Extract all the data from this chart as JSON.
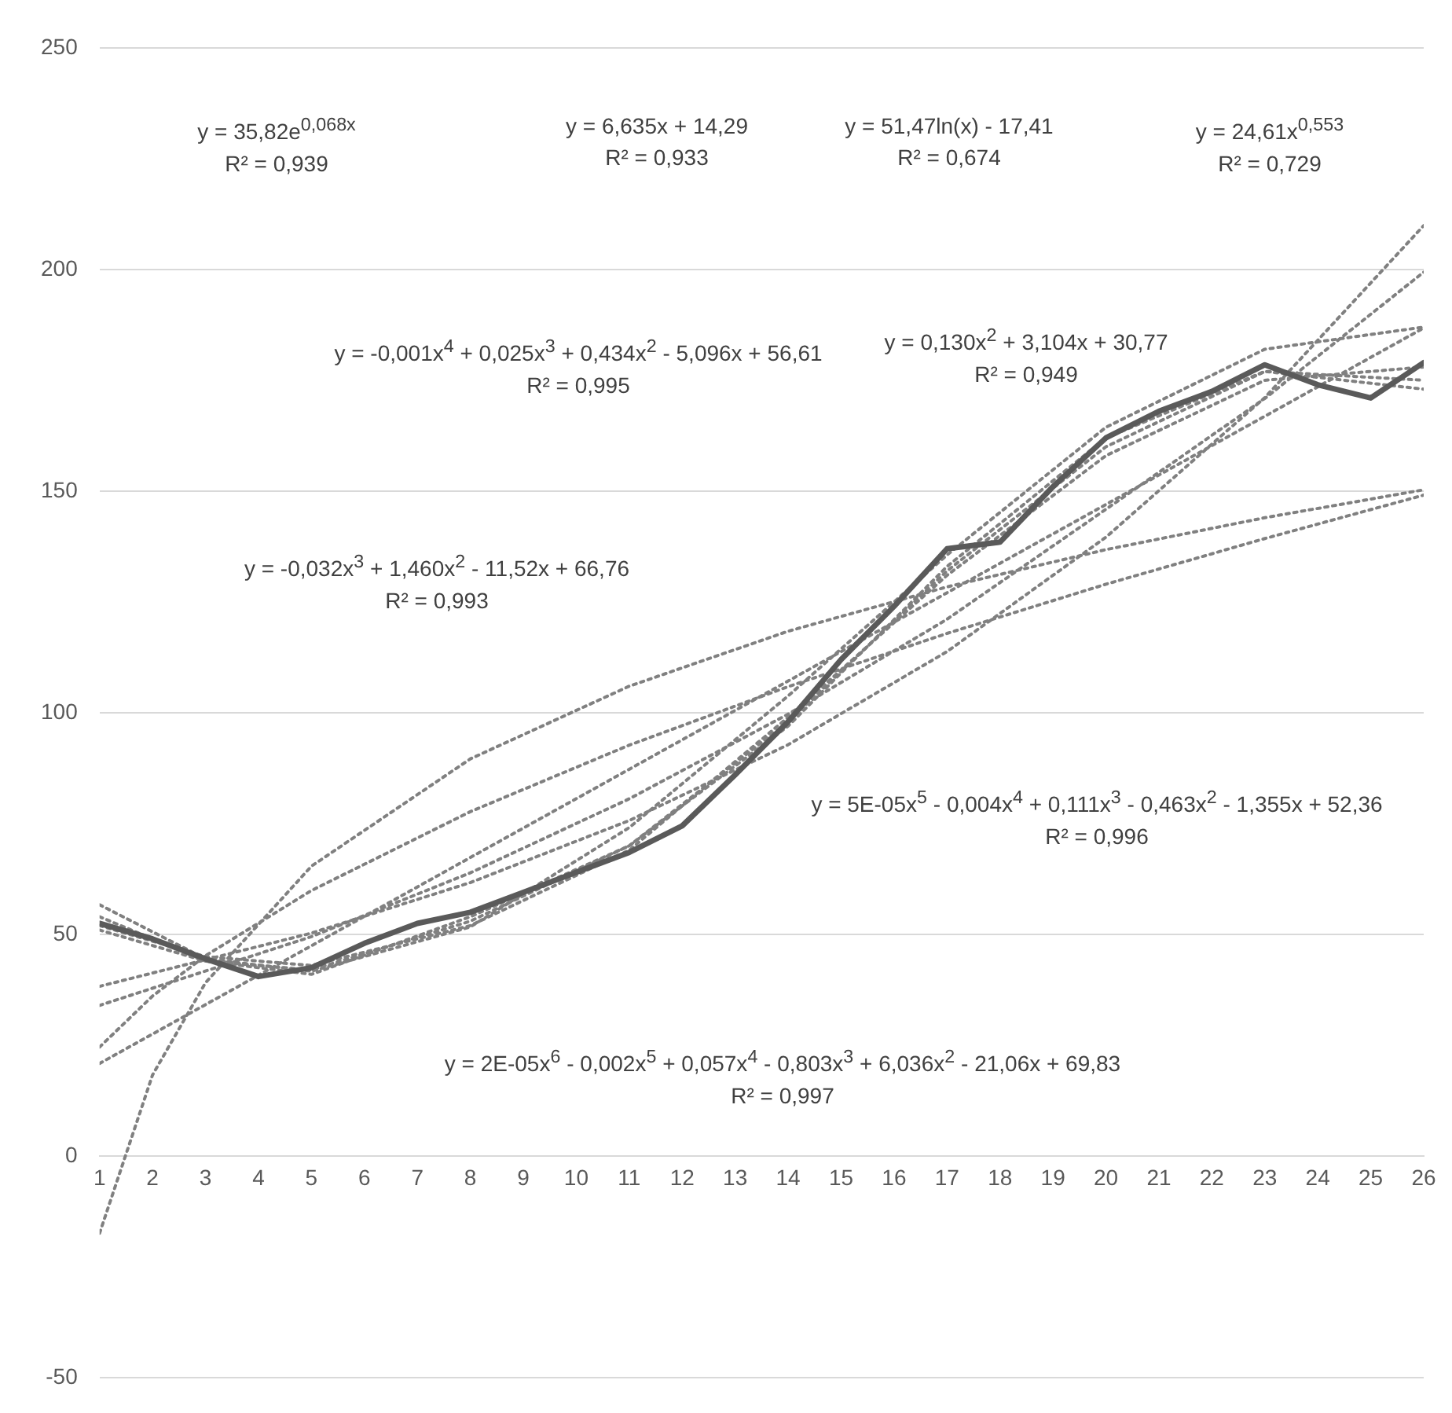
{
  "chart_data": {
    "type": "line",
    "xlim": [
      1,
      26
    ],
    "xticks": [
      1,
      2,
      3,
      4,
      5,
      6,
      7,
      8,
      9,
      10,
      11,
      12,
      13,
      14,
      15,
      16,
      17,
      18,
      19,
      20,
      21,
      22,
      23,
      24,
      25,
      26
    ],
    "ylim": [
      -50,
      250
    ],
    "yticks": [
      -50,
      0,
      50,
      100,
      150,
      200,
      250
    ],
    "grid": "y",
    "marker": "none",
    "series": [
      {
        "color": "#5a5a5a",
        "line_style": "solid",
        "x": [
          1,
          2,
          3,
          4,
          5,
          6,
          7,
          8,
          9,
          10,
          11,
          12,
          13,
          14,
          15,
          16,
          17,
          18,
          19,
          20,
          21,
          22,
          23,
          24,
          25,
          26
        ],
        "values": [
          52.5,
          49,
          44.5,
          40.5,
          42.5,
          48,
          52.5,
          55,
          59.5,
          64,
          68.5,
          74.5,
          86,
          98,
          112,
          124,
          137,
          138.5,
          151,
          162,
          168,
          172.5,
          178.5,
          174,
          171,
          179
        ]
      },
      {
        "color": "#808080",
        "line_style": "dotted",
        "x": [
          1,
          5,
          8,
          11,
          14,
          17,
          20,
          23,
          26
        ],
        "values": [
          38.3,
          50.3,
          61.7,
          75.7,
          92.8,
          113.8,
          139.6,
          171.1,
          209.9
        ]
      },
      {
        "color": "#808080",
        "line_style": "dotted",
        "x": [
          1,
          26
        ],
        "values": [
          20.9,
          186.8
        ]
      },
      {
        "color": "#808080",
        "line_style": "dotted",
        "x": [
          1,
          2,
          3,
          5,
          8,
          11,
          14,
          17,
          20,
          23,
          26
        ],
        "values": [
          -17.4,
          18.3,
          39.1,
          65.4,
          89.6,
          106,
          118.4,
          128.4,
          136.8,
          144,
          150.3
        ]
      },
      {
        "color": "#808080",
        "line_style": "dotted",
        "x": [
          1,
          2,
          3,
          5,
          8,
          11,
          14,
          17,
          20,
          23,
          26
        ],
        "values": [
          24.6,
          36.1,
          45.2,
          59.9,
          77.7,
          92.7,
          105.9,
          117.9,
          129,
          139.3,
          149.1
        ]
      },
      {
        "color": "#808080",
        "line_style": "dotted",
        "x": [
          1,
          3,
          5,
          8,
          11,
          14,
          17,
          20,
          23,
          26
        ],
        "values": [
          52,
          45,
          43,
          52,
          69,
          99,
          131,
          158,
          175,
          178
        ]
      },
      {
        "color": "#808080",
        "line_style": "dotted",
        "x": [
          1,
          5,
          8,
          11,
          14,
          17,
          20,
          23,
          26
        ],
        "values": [
          34,
          49.5,
          63.9,
          80.6,
          99.7,
          121.1,
          145.9,
          170.9,
          199.4
        ]
      },
      {
        "color": "#808080",
        "line_style": "dotted",
        "x": [
          1,
          3,
          5,
          8,
          11,
          14,
          17,
          20,
          23,
          26
        ],
        "values": [
          56.7,
          44.5,
          41.7,
          51.7,
          74.1,
          103.8,
          135.6,
          164.4,
          182,
          187
        ]
      },
      {
        "color": "#808080",
        "line_style": "dotted",
        "x": [
          1,
          3,
          5,
          8,
          11,
          14,
          17,
          20,
          23,
          26
        ],
        "values": [
          51,
          44,
          42,
          53,
          70,
          98,
          132,
          160,
          177,
          175
        ]
      },
      {
        "color": "#808080",
        "line_style": "dotted",
        "x": [
          1,
          3,
          5,
          8,
          11,
          14,
          17,
          20,
          23,
          26
        ],
        "values": [
          54,
          44,
          41,
          54,
          70,
          97,
          133,
          162,
          177,
          173
        ]
      }
    ],
    "annotations": [
      "y = 35,82e$^{0,068x}$\nR² = 0,939",
      "y = 6,635x + 14,29\nR² = 0,933",
      "y = 51,47ln(x) - 17,41\nR² = 0,674",
      "y = 24,61x$^{0,553}$\nR² = 0,729",
      "y = -0,001x$^{4}$ + 0,025x$^{3}$ + 0,434x$^{2}$ - 5,096x + 56,61\nR² = 0,995",
      "y = 0,130x$^{2}$ + 3,104x + 30,77\nR² = 0,949",
      "y = -0,032x$^{3}$ + 1,460x$^{2}$ - 11,52x + 66,76\nR² = 0,993",
      "y = 5E-05x$^{5}$ - 0,004x$^{4}$ + 0,111x$^{3}$ - 0,463x$^{2}$ - 1,355x + 52,36\nR² = 0,996",
      "y = 2E-05x$^{6}$ - 0,002x$^{5}$ + 0,057x$^{4}$ - 0,803x$^{3}$ + 6,036x$^{2}$ - 21,06x + 69,83\nR² = 0,997"
    ]
  }
}
